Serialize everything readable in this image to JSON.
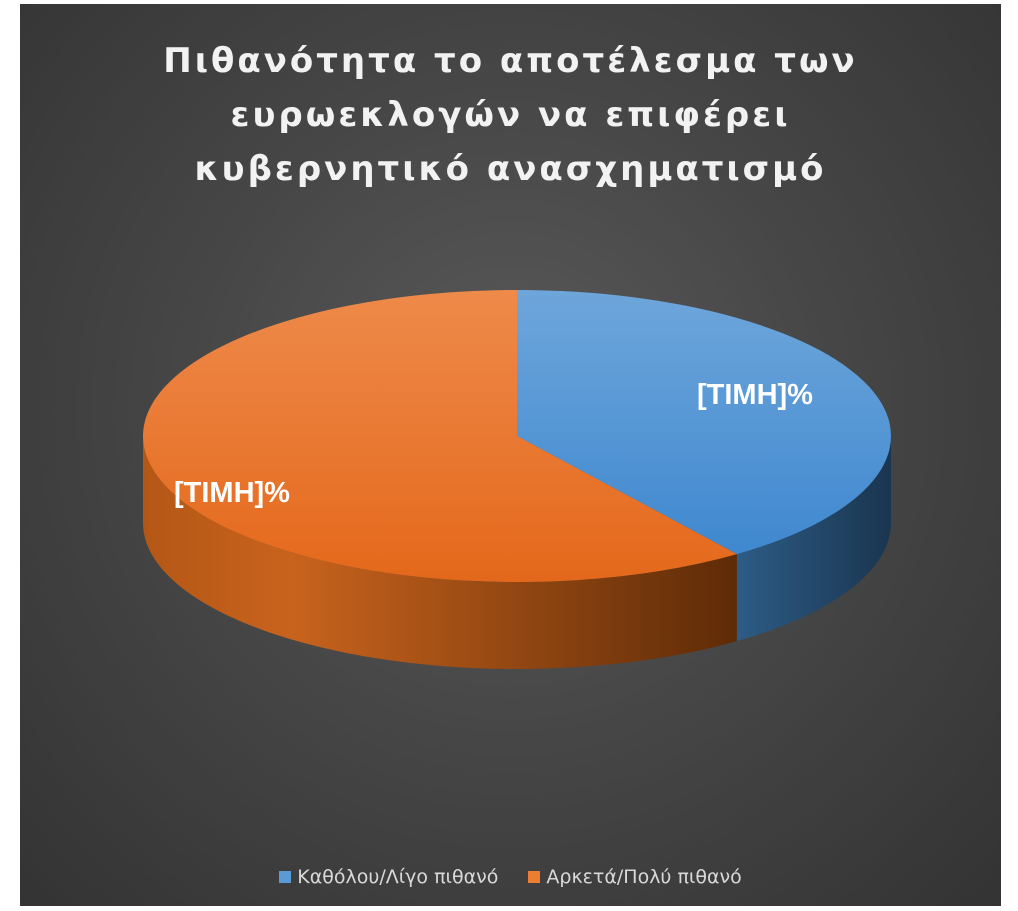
{
  "chart_data": {
    "type": "pie",
    "style": "3d",
    "title_lines": [
      "Πιθανότητα το αποτέλεσμα των",
      "ευρωεκλογών να επιφέρει",
      "κυβερνητικό ανασχηματισμό"
    ],
    "categories": [
      "Καθόλου/Λίγο πιθανό",
      "Αρκετά/Πολύ πιθανό"
    ],
    "values": [
      40,
      60
    ],
    "data_labels": [
      "[ΤΙΜΗ]%",
      "[ΤΙΜΗ]%"
    ],
    "colors": [
      "#5b9bd5",
      "#ed7d31"
    ],
    "legend_position": "bottom"
  }
}
